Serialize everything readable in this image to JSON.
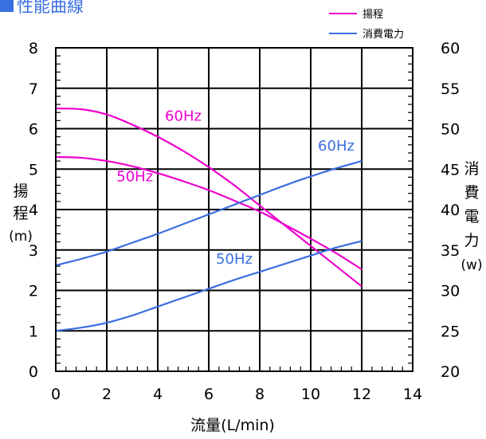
{
  "chart_data": {
    "type": "line",
    "title": "性能曲線",
    "xlabel": "流量(L/min)",
    "ylabel_left_chars": [
      "揚",
      "程",
      "(m)"
    ],
    "ylabel_right_chars": [
      "消",
      "費",
      "電",
      "力",
      "(w)"
    ],
    "xlim": [
      0,
      14
    ],
    "ylim_left": [
      0,
      8
    ],
    "ylim_right": [
      20,
      60
    ],
    "x_ticks": [
      "0",
      "2",
      "4",
      "6",
      "8",
      "10",
      "12",
      "14"
    ],
    "y_ticks_left": [
      "0",
      "1",
      "2",
      "3",
      "4",
      "5",
      "6",
      "7",
      "8"
    ],
    "y_ticks_right": [
      "20",
      "25",
      "30",
      "35",
      "40",
      "45",
      "50",
      "55",
      "60"
    ],
    "grid": true,
    "legend": {
      "placement": "top-right",
      "entries": [
        {
          "label": "揚程",
          "color": "#ee00cc"
        },
        {
          "label": "消費電力",
          "color": "#3a6fe0"
        }
      ]
    },
    "series": [
      {
        "group": "揚程",
        "label": "60Hz",
        "axis": "left",
        "color": "#ee00cc",
        "x": [
          0,
          1,
          2,
          3,
          4,
          5,
          6,
          7,
          8,
          9,
          10,
          11,
          12
        ],
        "y": [
          6.5,
          6.48,
          6.35,
          6.1,
          5.8,
          5.45,
          5.05,
          4.6,
          4.1,
          3.6,
          3.1,
          2.6,
          2.1
        ]
      },
      {
        "group": "揚程",
        "label": "50Hz",
        "axis": "left",
        "color": "#ee00cc",
        "x": [
          0,
          1,
          2,
          3,
          4,
          5,
          6,
          7,
          8,
          9,
          10,
          11,
          12
        ],
        "y": [
          5.3,
          5.28,
          5.2,
          5.07,
          4.9,
          4.7,
          4.48,
          4.22,
          3.95,
          3.62,
          3.28,
          2.92,
          2.52
        ]
      },
      {
        "group": "消費電力",
        "label": "60Hz",
        "axis": "right",
        "color": "#3a6fe0",
        "x": [
          0,
          1,
          2,
          3,
          4,
          5,
          6,
          7,
          8,
          9,
          10,
          11,
          12
        ],
        "y": [
          33.1,
          33.9,
          34.8,
          35.9,
          37.0,
          38.2,
          39.4,
          40.6,
          41.8,
          43.0,
          44.1,
          45.1,
          46.0
        ]
      },
      {
        "group": "消費電力",
        "label": "50Hz",
        "axis": "right",
        "color": "#3a6fe0",
        "x": [
          0,
          1,
          2,
          3,
          4,
          5,
          6,
          7,
          8,
          9,
          10,
          11,
          12
        ],
        "y": [
          25.0,
          25.4,
          26.0,
          26.9,
          28.0,
          29.1,
          30.2,
          31.3,
          32.3,
          33.3,
          34.3,
          35.3,
          36.1
        ]
      }
    ],
    "annotations": [
      {
        "text": "60Hz",
        "x": 5.0,
        "y": 6.2,
        "axis": "left",
        "color": "#ee00cc",
        "for": "揚程 60Hz"
      },
      {
        "text": "50Hz",
        "x": 3.1,
        "y": 4.7,
        "axis": "left",
        "color": "#ee00cc",
        "for": "揚程 50Hz"
      },
      {
        "text": "60Hz",
        "x": 11.0,
        "y": 47.3,
        "axis": "right",
        "color": "#3a6fe0",
        "for": "消費電力 60Hz"
      },
      {
        "text": "50Hz",
        "x": 7.0,
        "y": 33.3,
        "axis": "right",
        "color": "#3a6fe0",
        "for": "消費電力 50Hz"
      }
    ]
  }
}
